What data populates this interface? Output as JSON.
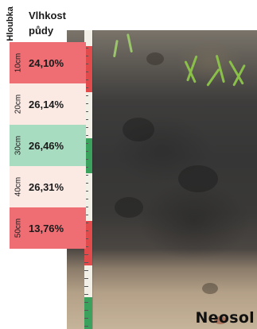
{
  "headers": {
    "depth": "Hloubka",
    "moisture_line1": "Vlhkost",
    "moisture_line2": "půdy"
  },
  "rows": [
    {
      "depth": "10cm",
      "value": "24,10%",
      "color": "#ef6e74"
    },
    {
      "depth": "20cm",
      "value": "26,14%",
      "color": "#fbe9e4"
    },
    {
      "depth": "30cm",
      "value": "26,46%",
      "color": "#a8dcc0"
    },
    {
      "depth": "40cm",
      "value": "26,31%",
      "color": "#fbe9e4"
    },
    {
      "depth": "50cm",
      "value": "13,76%",
      "color": "#ef6e74"
    }
  ],
  "watermark": "Neosol",
  "ruler_colors": [
    "#e24b4b",
    "#f2efe6",
    "#3aa25c"
  ]
}
